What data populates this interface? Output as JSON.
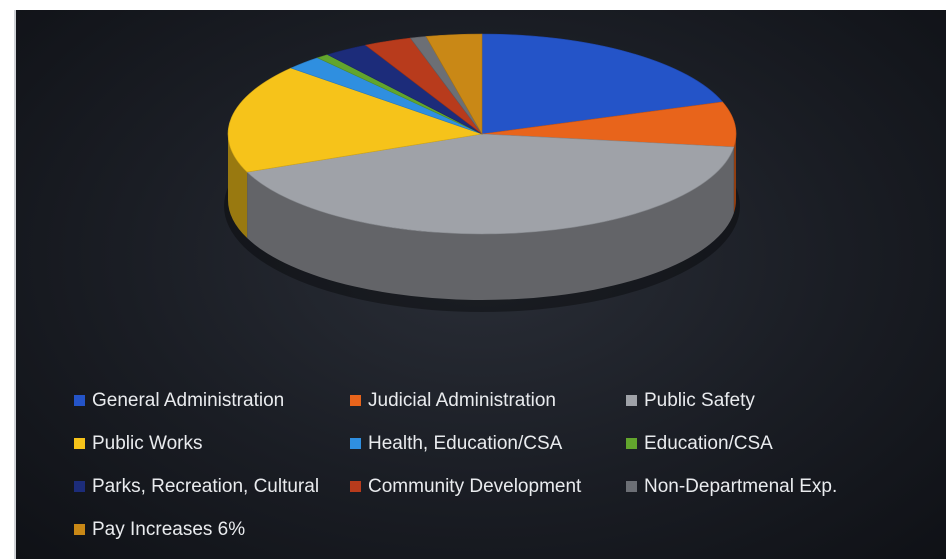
{
  "chart_data": {
    "type": "pie",
    "style": "3d",
    "title": "",
    "slices": [
      {
        "label": "General Administration",
        "value": 19.6,
        "color": "#2454c8"
      },
      {
        "label": "Judicial Administration",
        "value": 7.2,
        "color": "#e8641b"
      },
      {
        "label": "Public Safety",
        "value": 41.3,
        "color": "#9fa2a8"
      },
      {
        "label": "Public Works",
        "value": 17.5,
        "color": "#f6c31a"
      },
      {
        "label": "Health, Education/CSA",
        "value": 2.3,
        "color": "#2f8fe0"
      },
      {
        "label": "Education/CSA",
        "value": 0.8,
        "color": "#62a52d"
      },
      {
        "label": "Parks, Recreation, Cultural",
        "value": 2.8,
        "color": "#1c2c7a"
      },
      {
        "label": "Community Development",
        "value": 3.0,
        "color": "#b83b1c"
      },
      {
        "label": "Non-Departmenal Exp.",
        "value": 1.0,
        "color": "#6c6f75"
      },
      {
        "label": "Pay Increases 6%",
        "value": 3.5,
        "color": "#c98816"
      }
    ],
    "legend_position": "bottom"
  }
}
